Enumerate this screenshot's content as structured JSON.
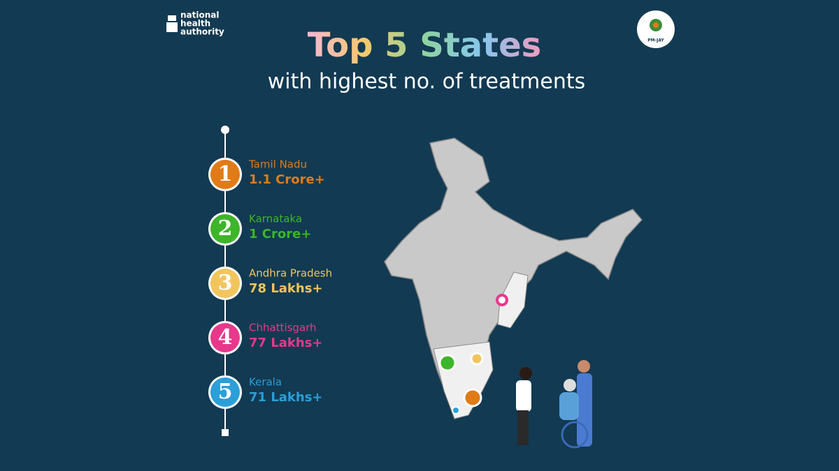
{
  "header": {
    "logo_left": [
      "national",
      "health",
      "authority"
    ],
    "logo_right": "PM-JAY",
    "title": "Top 5 States",
    "subtitle": "with highest no. of treatments"
  },
  "list": [
    {
      "rank": "1",
      "state": "Tamil Nadu",
      "value": "1.1 Crore+",
      "color": "#e07b17"
    },
    {
      "rank": "2",
      "state": "Karnataka",
      "value": "1 Crore+",
      "color": "#3db52a"
    },
    {
      "rank": "3",
      "state": "Andhra Pradesh",
      "value": "78 Lakhs+",
      "color": "#f2c55c"
    },
    {
      "rank": "4",
      "state": "Chhattisgarh",
      "value": "77 Lakhs+",
      "color": "#e8388c"
    },
    {
      "rank": "5",
      "state": "Kerala",
      "value": "71 Lakhs+",
      "color": "#2a9fd8"
    }
  ]
}
